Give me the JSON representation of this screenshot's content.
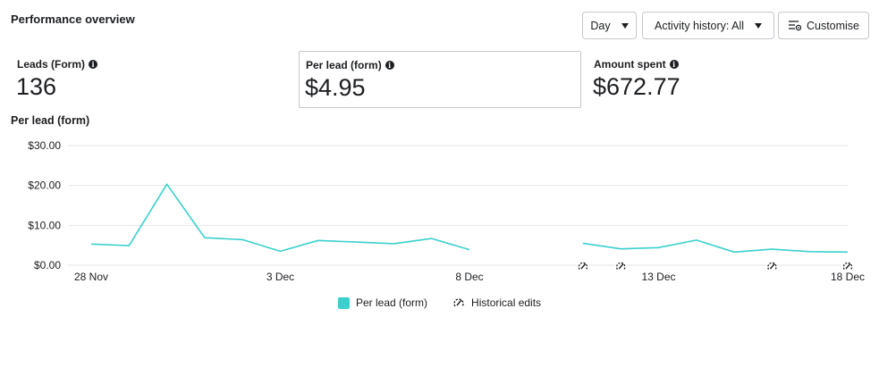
{
  "page": {
    "title": "Performance overview"
  },
  "controls": {
    "period_label": "Day",
    "activity_label": "Activity history: All",
    "customise_label": "Customise"
  },
  "metrics": [
    {
      "label": "Leads (Form)",
      "value": "136",
      "selected": false
    },
    {
      "label": "Per lead (form)",
      "value": "$4.95",
      "selected": true
    },
    {
      "label": "Amount spent",
      "value": "$672.77",
      "selected": false
    }
  ],
  "colors": {
    "series": "#3ad0cd",
    "grid": "#e4e6eb",
    "text": "#1c1e21"
  },
  "chart_data": {
    "type": "line",
    "title": "Per lead (form)",
    "ylabel": "",
    "xlabel": "",
    "x": [
      "28 Nov",
      "29 Nov",
      "30 Nov",
      "1 Dec",
      "2 Dec",
      "3 Dec",
      "4 Dec",
      "5 Dec",
      "6 Dec",
      "7 Dec",
      "8 Dec",
      "9 Dec",
      "10 Dec",
      "11 Dec",
      "12 Dec",
      "13 Dec",
      "14 Dec",
      "15 Dec",
      "16 Dec",
      "17 Dec",
      "18 Dec"
    ],
    "x_tick_labels": [
      "28 Nov",
      "3 Dec",
      "8 Dec",
      "13 Dec",
      "18 Dec"
    ],
    "y_ticks": [
      0,
      10,
      20,
      30
    ],
    "y_tick_labels": [
      "$0.00",
      "$10.00",
      "$20.00",
      "$30.00"
    ],
    "ylim": [
      0,
      30
    ],
    "grid": true,
    "series": [
      {
        "name": "Per lead (form)",
        "values": [
          5.3,
          4.9,
          20.3,
          6.9,
          6.4,
          3.5,
          6.2,
          5.8,
          5.4,
          6.7,
          3.9,
          null,
          null,
          5.5,
          4.1,
          4.4,
          6.3,
          3.3,
          4.0,
          3.4,
          3.3
        ]
      }
    ],
    "historical_edits": [
      "11 Dec",
      "12 Dec",
      "16 Dec",
      "18 Dec"
    ],
    "legend": [
      {
        "label": "Per lead (form)",
        "kind": "series"
      },
      {
        "label": "Historical edits",
        "kind": "marker"
      }
    ],
    "legend_position": "bottom"
  }
}
